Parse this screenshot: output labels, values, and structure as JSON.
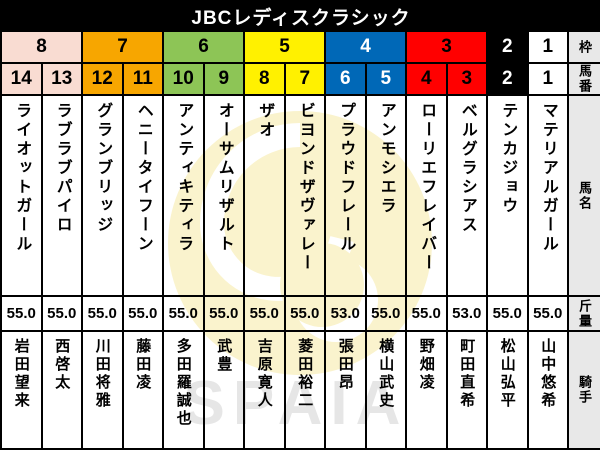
{
  "title": "JBCレディスクラシック",
  "column_headers": {
    "frame": "枠",
    "horse_number": "馬番",
    "horse_name": "馬名",
    "weight": "斤量",
    "jockey": "騎手"
  },
  "frame_colors": {
    "1": {
      "bg": "#FFFFFF",
      "fg": "#000000"
    },
    "2": {
      "bg": "#000000",
      "fg": "#FFFFFF"
    },
    "3": {
      "bg": "#FF0000",
      "fg": "#000000"
    },
    "4": {
      "bg": "#0068B7",
      "fg": "#FFFFFF"
    },
    "5": {
      "bg": "#FFF100",
      "fg": "#000000"
    },
    "6": {
      "bg": "#8DC556",
      "fg": "#000000"
    },
    "7": {
      "bg": "#F7A600",
      "fg": "#000000"
    },
    "8": {
      "bg": "#F9DCD2",
      "fg": "#000000"
    }
  },
  "frame_row": [
    {
      "frame": "8",
      "span": 2
    },
    {
      "frame": "7",
      "span": 2
    },
    {
      "frame": "6",
      "span": 2
    },
    {
      "frame": "5",
      "span": 2
    },
    {
      "frame": "4",
      "span": 2
    },
    {
      "frame": "3",
      "span": 2
    },
    {
      "frame": "2",
      "span": 1
    },
    {
      "frame": "1",
      "span": 1
    }
  ],
  "horses": [
    {
      "number": "14",
      "frame": "8",
      "name": "ライオットガール",
      "weight": "55.0",
      "jockey": "岩田望来"
    },
    {
      "number": "13",
      "frame": "8",
      "name": "ラブラブパイロ",
      "weight": "55.0",
      "jockey": "西啓太"
    },
    {
      "number": "12",
      "frame": "7",
      "name": "グランブリッジ",
      "weight": "55.0",
      "jockey": "川田将雅"
    },
    {
      "number": "11",
      "frame": "7",
      "name": "ヘニータイフーン",
      "weight": "55.0",
      "jockey": "藤田凌"
    },
    {
      "number": "10",
      "frame": "6",
      "name": "アンティキティラ",
      "weight": "55.0",
      "jockey": "多田羅誠也"
    },
    {
      "number": "9",
      "frame": "6",
      "name": "オーサムリザルト",
      "weight": "55.0",
      "jockey": "武豊"
    },
    {
      "number": "8",
      "frame": "5",
      "name": "ザオ",
      "weight": "55.0",
      "jockey": "吉原寛人"
    },
    {
      "number": "7",
      "frame": "5",
      "name": "ビヨンドザヴァレー",
      "weight": "55.0",
      "jockey": "菱田裕二"
    },
    {
      "number": "6",
      "frame": "4",
      "name": "プラウドフレール",
      "weight": "53.0",
      "jockey": "張田昂"
    },
    {
      "number": "5",
      "frame": "4",
      "name": "アンモシエラ",
      "weight": "55.0",
      "jockey": "横山武史"
    },
    {
      "number": "4",
      "frame": "3",
      "name": "ローリエフレイバー",
      "weight": "55.0",
      "jockey": "野畑凌"
    },
    {
      "number": "3",
      "frame": "3",
      "name": "ベルグラシアス",
      "weight": "53.0",
      "jockey": "町田直希"
    },
    {
      "number": "2",
      "frame": "2",
      "name": "テンカジョウ",
      "weight": "55.0",
      "jockey": "松山弘平"
    },
    {
      "number": "1",
      "frame": "1",
      "name": "マテリアルガール",
      "weight": "55.0",
      "jockey": "山中悠希"
    }
  ],
  "watermark": {
    "brand_text": "SPAIA",
    "logo_color": "#FAF3CD",
    "text_color": "#E6E6E6"
  },
  "chart_data": {
    "type": "table",
    "title": "JBCレディスクラシック",
    "columns": [
      "枠",
      "馬番",
      "馬名",
      "斤量",
      "騎手"
    ],
    "rows": [
      [
        8,
        14,
        "ライオットガール",
        55.0,
        "岩田望来"
      ],
      [
        8,
        13,
        "ラブラブパイロ",
        55.0,
        "西啓太"
      ],
      [
        7,
        12,
        "グランブリッジ",
        55.0,
        "川田将雅"
      ],
      [
        7,
        11,
        "ヘニータイフーン",
        55.0,
        "藤田凌"
      ],
      [
        6,
        10,
        "アンティキティラ",
        55.0,
        "多田羅誠也"
      ],
      [
        6,
        9,
        "オーサムリザルト",
        55.0,
        "武豊"
      ],
      [
        5,
        8,
        "ザオ",
        55.0,
        "吉原寛人"
      ],
      [
        5,
        7,
        "ビヨンドザヴァレー",
        55.0,
        "菱田裕二"
      ],
      [
        4,
        6,
        "プラウドフレール",
        53.0,
        "張田昂"
      ],
      [
        4,
        5,
        "アンモシエラ",
        55.0,
        "横山武史"
      ],
      [
        3,
        4,
        "ローリエフレイバー",
        55.0,
        "野畑凌"
      ],
      [
        3,
        3,
        "ベルグラシアス",
        53.0,
        "町田直希"
      ],
      [
        2,
        2,
        "テンカジョウ",
        55.0,
        "松山弘平"
      ],
      [
        1,
        1,
        "マテリアルガール",
        55.0,
        "山中悠希"
      ]
    ],
    "layout_hints": {
      "orientation": "columns right-to-left by horse number (14 at left, 1 at right)",
      "row_label_column": "far right, gray background",
      "frame_color_coding": "JRA bracket colors on 枠 and 馬番 rows"
    }
  }
}
